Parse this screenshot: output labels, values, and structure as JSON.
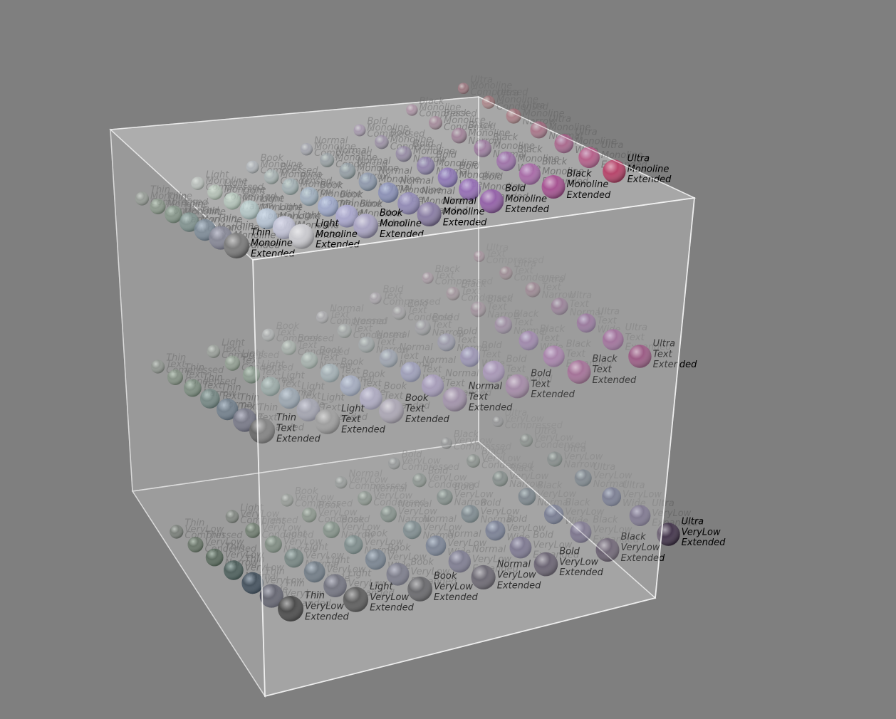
{
  "colors": {
    "background": "#7f7f7f",
    "cube_face": "#ffffff",
    "cube_edge": "#f2f2f2",
    "label_front": "#000000",
    "label_back": "#6a6a6a"
  },
  "layers": [
    {
      "name": "monoline",
      "rows": [
        {
          "col": 1,
          "weight": "Thin",
          "tone": "#7c7c7c",
          "labels": [
            "Thin",
            "Monoline",
            "Extended"
          ]
        },
        {
          "col": 2,
          "weight": "Light",
          "tone": "#c9c9ce",
          "labels": [
            "Light",
            "Monoline",
            "Extended"
          ]
        },
        {
          "col": 3,
          "weight": "Book",
          "tone": "#a9a4c2",
          "labels": [
            "Book",
            "Monoline",
            "Extended"
          ]
        },
        {
          "col": 4,
          "weight": "Normal",
          "tone": "#8a7ea4",
          "labels": [
            "Normal",
            "Monoline",
            "Extended"
          ]
        },
        {
          "col": 5,
          "weight": "Bold",
          "tone": "#8e5aa3",
          "labels": [
            "Bold",
            "Monoline",
            "Extended"
          ]
        },
        {
          "col": 6,
          "weight": "Black",
          "tone": "#a14a8c",
          "labels": [
            "Black",
            "Monoline",
            "Extended"
          ]
        },
        {
          "col": 7,
          "weight": "Ultra",
          "tone": "#b23a62",
          "labels": [
            "Ultra",
            "Monoline",
            "Extended"
          ]
        }
      ]
    },
    {
      "name": "text",
      "rows": [
        {
          "col": 1,
          "weight": "Thin",
          "tone": "#6a6a6a",
          "labels": [
            "Thin",
            "Text",
            "Extended"
          ]
        },
        {
          "col": 2,
          "weight": "Light",
          "tone": "#8a8a8a",
          "labels": [
            "Light",
            "Text",
            "Extended"
          ]
        },
        {
          "col": 3,
          "weight": "Book",
          "tone": "#9a94a4",
          "labels": [
            "Book",
            "Text",
            "Extended"
          ]
        },
        {
          "col": 4,
          "weight": "Normal",
          "tone": "#8e7c98",
          "labels": [
            "Normal",
            "Text",
            "Extended"
          ]
        },
        {
          "col": 5,
          "weight": "Bold",
          "tone": "#8a6a8e",
          "labels": [
            "Bold",
            "Text",
            "Extended"
          ]
        },
        {
          "col": 6,
          "weight": "Black",
          "tone": "#8a4a7a",
          "labels": [
            "Black",
            "Text",
            "Extended"
          ]
        },
        {
          "col": 7,
          "weight": "Ultra",
          "tone": "#7e2e62",
          "labels": [
            "Ultra",
            "Text",
            "Extended"
          ]
        }
      ]
    },
    {
      "name": "verylow",
      "rows": [
        {
          "col": 1,
          "weight": "Thin",
          "tone": "#262626",
          "labels": [
            "Thin",
            "VeryLow",
            "Extended"
          ]
        },
        {
          "col": 2,
          "weight": "Light",
          "tone": "#3c3c3c",
          "labels": [
            "Light",
            "VeryLow",
            "Extended"
          ]
        },
        {
          "col": 3,
          "weight": "Book",
          "tone": "#4a4a4e",
          "labels": [
            "Book",
            "VeryLow",
            "Extended"
          ]
        },
        {
          "col": 4,
          "weight": "Normal",
          "tone": "#4e4a56",
          "labels": [
            "Normal",
            "VeryLow",
            "Extended"
          ]
        },
        {
          "col": 5,
          "weight": "Bold",
          "tone": "#4c4456",
          "labels": [
            "Bold",
            "VeryLow",
            "Extended"
          ]
        },
        {
          "col": 6,
          "weight": "Black",
          "tone": "#4a3e52",
          "labels": [
            "Black",
            "VeryLow",
            "Extended"
          ]
        },
        {
          "col": 7,
          "weight": "Ultra",
          "tone": "#46384e",
          "labels": [
            "Ultra",
            "VeryLow",
            "Extended"
          ]
        }
      ]
    }
  ],
  "widths": [
    "Extended",
    "Expanded",
    "Wide",
    "Normal",
    "Narrow",
    "Condensed",
    "Compressed"
  ],
  "width_tint": [
    "#ffffff",
    "#b0b8ff",
    "#80c0ff",
    "#80d8c8",
    "#90e0a0",
    "#a0e0a0",
    "#c0e0c0"
  ]
}
